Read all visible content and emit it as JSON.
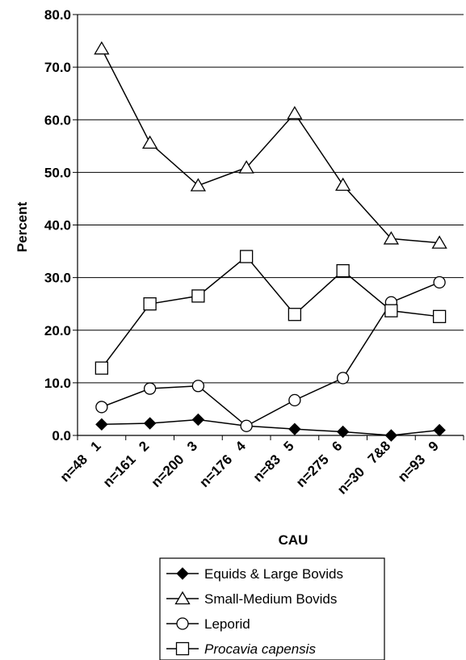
{
  "chart_data": {
    "type": "line",
    "xlabel": "CAU",
    "ylabel": "Percent",
    "ylim": [
      0,
      80
    ],
    "yticks": [
      "0.0",
      "10.0",
      "20.0",
      "30.0",
      "40.0",
      "50.0",
      "60.0",
      "70.0",
      "80.0"
    ],
    "categories": [
      "n=48   1",
      "n=161   2",
      "n=200   3",
      "n=176   4",
      "n=83   5",
      "n=275   6",
      "n=30   7&8",
      "n=93   9"
    ],
    "grid": "horizontal",
    "legend_position": "bottom",
    "series": [
      {
        "name": "Equids & Large Bovids",
        "marker": "diamond-filled",
        "values": [
          2.1,
          2.3,
          3.0,
          1.8,
          1.2,
          0.7,
          0.0,
          1.0
        ]
      },
      {
        "name": "Small-Medium Bovids",
        "marker": "triangle-open",
        "values": [
          73.5,
          55.6,
          47.5,
          50.9,
          61.2,
          47.6,
          37.4,
          36.6
        ]
      },
      {
        "name": "Leporid",
        "marker": "circle-open",
        "values": [
          5.4,
          8.9,
          9.4,
          1.8,
          6.7,
          10.9,
          25.3,
          29.1
        ]
      },
      {
        "name": "Procavia capensis",
        "marker": "square-open",
        "italic": true,
        "values": [
          12.8,
          25.0,
          26.5,
          34.0,
          23.0,
          31.3,
          23.7,
          22.6
        ]
      }
    ]
  }
}
